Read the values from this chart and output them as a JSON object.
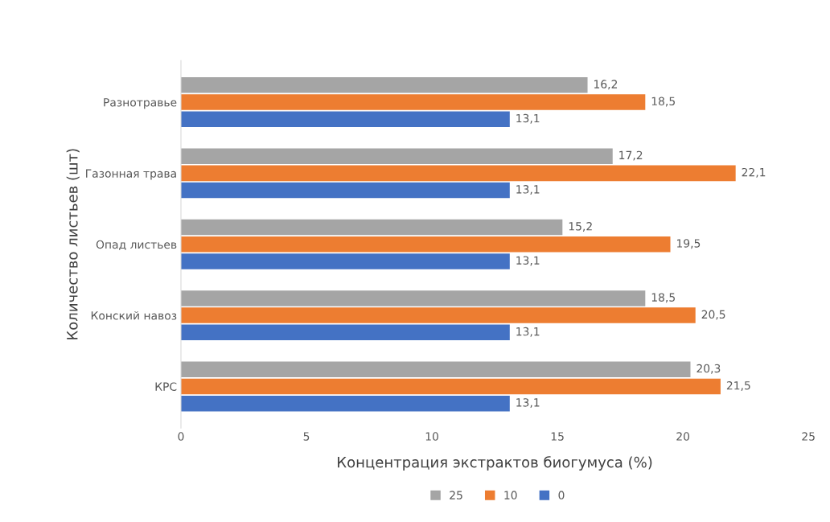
{
  "chart_data": {
    "type": "bar",
    "orientation": "horizontal",
    "xlabel": "Концентрация экстрактов биогумуса (%)",
    "ylabel": "Количество листьев (шт)",
    "categories": [
      "Разнотравье",
      "Газонная трава",
      "Опад листьев",
      "Конский навоз",
      "КРС"
    ],
    "series": [
      {
        "name": "25",
        "color": "#a5a5a5",
        "values": [
          16.2,
          17.2,
          15.2,
          18.5,
          20.3
        ],
        "value_labels": [
          "16,2",
          "17,2",
          "15,2",
          "18,5",
          "20,3"
        ]
      },
      {
        "name": "10",
        "color": "#ed7d31",
        "values": [
          18.5,
          22.1,
          19.5,
          20.5,
          21.5
        ],
        "value_labels": [
          "18,5",
          "22,1",
          "19,5",
          "20,5",
          "21,5"
        ]
      },
      {
        "name": "0",
        "color": "#4472c4",
        "values": [
          13.1,
          13.1,
          13.1,
          13.1,
          13.1
        ],
        "value_labels": [
          "13,1",
          "13,1",
          "13,1",
          "13,1",
          "13,1"
        ]
      }
    ],
    "xlim": [
      0,
      25
    ],
    "xticks": [
      0,
      5,
      10,
      15,
      20,
      25
    ],
    "grid": false,
    "legend": "bottom"
  }
}
